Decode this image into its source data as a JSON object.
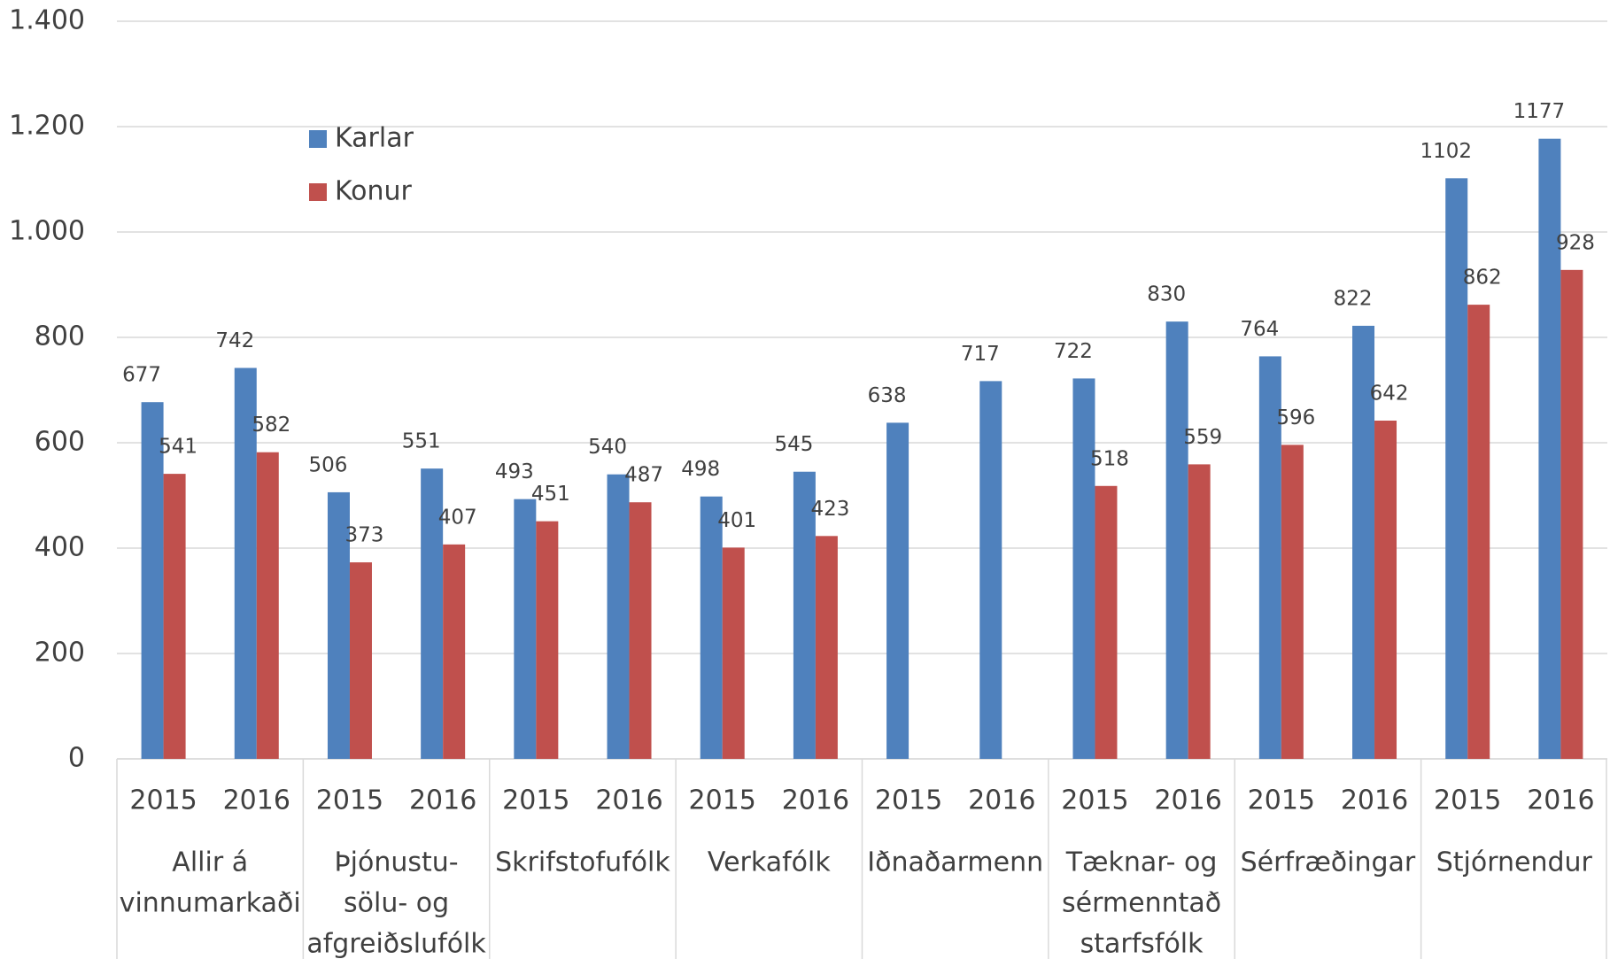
{
  "chart_data": {
    "type": "bar",
    "categories": [
      "2015",
      "2016",
      "2015",
      "2016",
      "2015",
      "2016",
      "2015",
      "2016",
      "2015",
      "2016",
      "2015",
      "2016",
      "2015",
      "2016",
      "2015",
      "2016"
    ],
    "groups": [
      [
        "Allir á",
        "vinnumarkaði"
      ],
      [
        "Þjónustu-",
        "sölu- og",
        "afgreiðslufólk"
      ],
      [
        "Skrifstofufólk"
      ],
      [
        "Verkafólk"
      ],
      [
        "Iðnaðarmenn"
      ],
      [
        "Tæknar- og",
        "sérmenntað",
        "starfsfólk"
      ],
      [
        "Sérfræðingar"
      ],
      [
        "Stjórnendur"
      ]
    ],
    "series": [
      {
        "name": "Karlar",
        "color": "#4f81bd",
        "values": [
          677,
          742,
          506,
          551,
          493,
          540,
          498,
          545,
          638,
          717,
          722,
          830,
          764,
          822,
          1102,
          1177
        ]
      },
      {
        "name": "Konur",
        "color": "#c0504d",
        "values": [
          541,
          582,
          373,
          407,
          451,
          487,
          401,
          423,
          null,
          null,
          518,
          559,
          596,
          642,
          862,
          928
        ]
      }
    ],
    "ylim": [
      0,
      1400
    ],
    "yticks": [
      0,
      200,
      400,
      600,
      800,
      {
        "value": 1000,
        "label": "1.000"
      },
      {
        "value": 1200,
        "label": "1.200"
      },
      {
        "value": 1400,
        "label": "1.400"
      }
    ],
    "grid": true
  }
}
